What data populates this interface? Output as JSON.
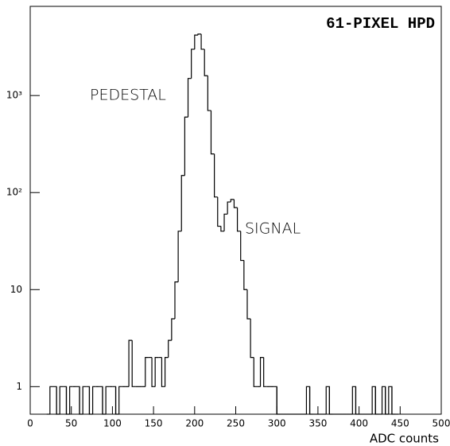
{
  "chart_data": {
    "type": "histogram",
    "title": "61-PIXEL HPD",
    "annotations": [
      {
        "text": "PEDESTAL",
        "x": 113,
        "y": 1000
      },
      {
        "text": "SIGNAL",
        "x": 308,
        "y": 42
      }
    ],
    "x_label": "ADC counts",
    "log_y": true,
    "color": "#000000",
    "bins": [
      20,
      24,
      28,
      32,
      36,
      40,
      44,
      48,
      52,
      56,
      60,
      64,
      68,
      72,
      76,
      80,
      84,
      88,
      92,
      96,
      100,
      104,
      108,
      112,
      116,
      120,
      124,
      128,
      132,
      136,
      140,
      144,
      148,
      152,
      156,
      160,
      164,
      168,
      172,
      176,
      180,
      184,
      188,
      192,
      196,
      200,
      204,
      208,
      212,
      216,
      220,
      224,
      228,
      232,
      236,
      240,
      244,
      248,
      252,
      256,
      260,
      264,
      268,
      272,
      276,
      280,
      284,
      288,
      292,
      296,
      300,
      304,
      308,
      312,
      316,
      320,
      324,
      328,
      332,
      336,
      340,
      344,
      348,
      352,
      356,
      360,
      364,
      368,
      372,
      376,
      380,
      384,
      388,
      392,
      396,
      400,
      404,
      408,
      412,
      416,
      420,
      424,
      428,
      432,
      436,
      440,
      444,
      448
    ],
    "values": [
      0,
      1,
      1,
      0,
      1,
      1,
      0,
      1,
      1,
      1,
      0,
      1,
      1,
      0,
      1,
      1,
      1,
      0,
      1,
      1,
      1,
      0,
      1,
      1,
      1,
      3,
      1,
      1,
      1,
      1,
      2,
      2,
      1,
      2,
      2,
      1,
      2,
      3,
      5,
      12,
      40,
      150,
      600,
      1500,
      3000,
      4200,
      4300,
      3000,
      1600,
      700,
      250,
      90,
      45,
      40,
      60,
      80,
      85,
      70,
      40,
      20,
      10,
      5,
      2,
      1,
      1,
      2,
      1,
      1,
      1,
      1,
      0,
      0,
      0,
      0,
      0,
      0,
      0,
      0,
      0,
      1,
      0,
      0,
      0,
      0,
      0,
      1,
      0,
      0,
      0,
      0,
      0,
      0,
      0,
      1,
      0,
      0,
      0,
      0,
      0,
      1,
      0,
      0,
      1,
      0,
      1,
      0,
      0
    ],
    "xlim": [
      0,
      500
    ],
    "xticks": [
      0,
      50,
      100,
      150,
      200,
      250,
      300,
      350,
      400,
      450,
      500
    ],
    "ylim": [
      0.52,
      8300
    ],
    "yticks": [
      1,
      10,
      {
        "value": 100,
        "label": "10²"
      },
      {
        "value": 1000,
        "label": "10³"
      }
    ]
  }
}
